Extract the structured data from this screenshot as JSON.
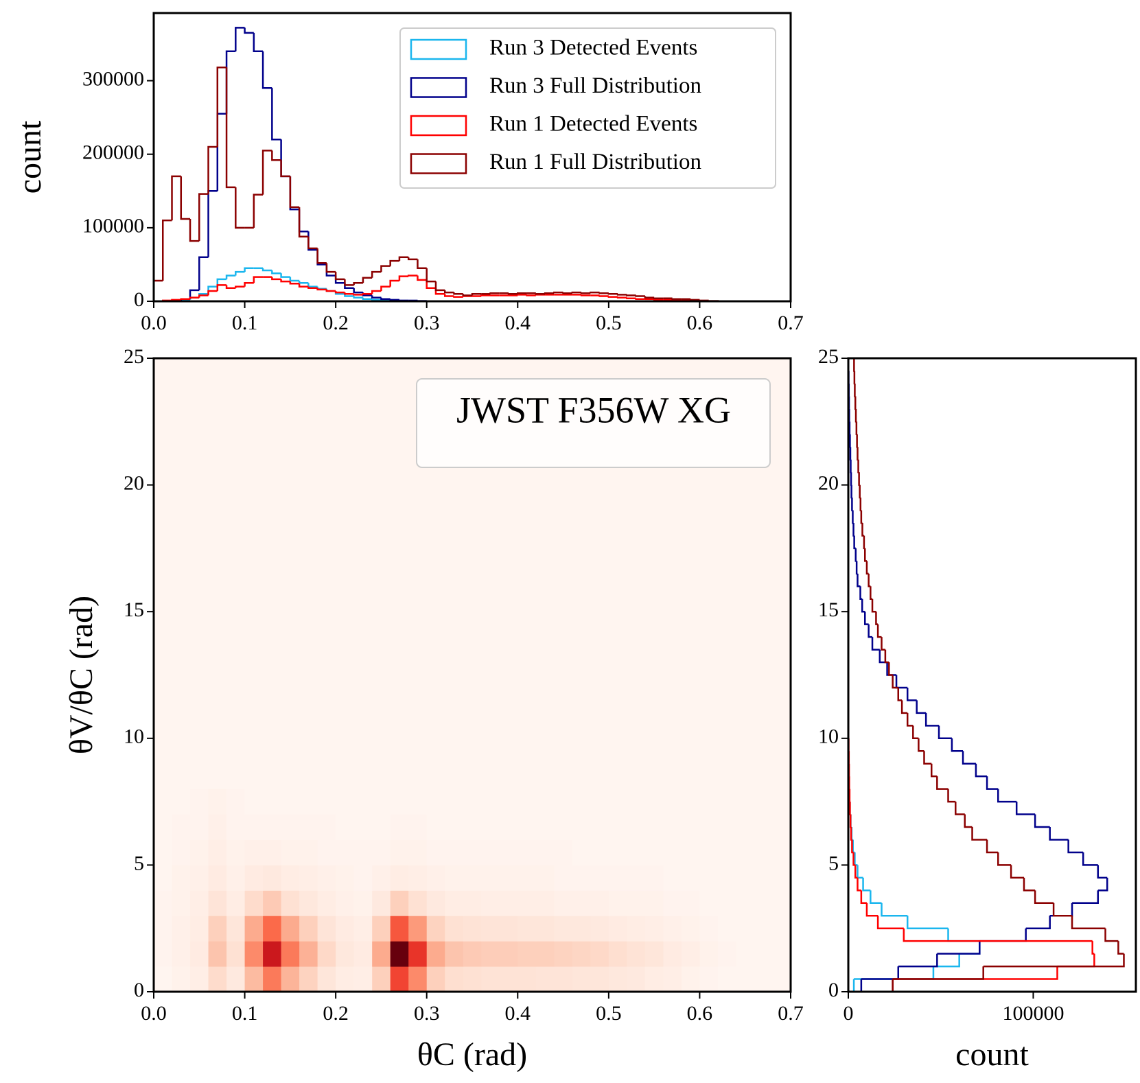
{
  "chart_data": [
    {
      "type": "histogram",
      "orientation": "vertical",
      "ylabel": "count",
      "xlim": [
        0,
        0.7
      ],
      "ylim": [
        0,
        392000
      ],
      "xticks": [
        {
          "value": 0,
          "label": "0.0"
        },
        0.1,
        0.2,
        0.3,
        0.4,
        0.5,
        0.6,
        0.7
      ],
      "yticks": [
        0,
        100000,
        200000,
        300000
      ],
      "legend": "upper right",
      "bins": [
        0,
        0.01,
        0.02,
        0.03,
        0.04,
        0.05,
        0.06,
        0.07,
        0.08,
        0.09,
        0.1,
        0.11,
        0.12,
        0.13,
        0.14,
        0.15,
        0.16,
        0.17,
        0.18,
        0.19,
        0.2,
        0.21,
        0.22,
        0.23,
        0.24,
        0.25,
        0.26,
        0.27,
        0.28,
        0.29,
        0.3,
        0.31,
        0.32,
        0.33,
        0.34,
        0.35,
        0.36,
        0.37,
        0.38,
        0.39,
        0.4,
        0.41,
        0.42,
        0.43,
        0.44,
        0.45,
        0.46,
        0.47,
        0.48,
        0.49,
        0.5,
        0.51,
        0.52,
        0.53,
        0.54,
        0.55,
        0.56,
        0.57,
        0.58,
        0.59,
        0.6,
        0.61,
        0.62
      ],
      "series": [
        {
          "name": "Run 3 Detected Events",
          "color": "#1ab6ee",
          "values": [
            0,
            0,
            0,
            2000,
            5000,
            10000,
            20000,
            30000,
            35000,
            40000,
            45000,
            45000,
            42000,
            38000,
            33000,
            28000,
            25000,
            20000,
            17000,
            14000,
            10000,
            7000,
            5000,
            3000,
            2000,
            1000,
            0,
            0,
            0,
            0,
            0,
            0,
            0,
            0,
            0,
            0,
            0,
            0,
            0,
            0,
            0,
            0,
            0,
            0,
            0,
            0,
            0,
            0,
            0,
            0,
            0,
            0,
            0,
            0,
            0,
            0,
            0,
            0,
            0,
            0,
            0,
            0
          ]
        },
        {
          "name": "Run 3 Full Distribution",
          "color": "#00008b",
          "values": [
            0,
            0,
            1000,
            3000,
            15000,
            60000,
            150000,
            255000,
            340000,
            372000,
            365000,
            340000,
            290000,
            220000,
            170000,
            125000,
            95000,
            70000,
            50000,
            35000,
            25000,
            18000,
            12000,
            8000,
            5000,
            3000,
            2000,
            1000,
            1000,
            500,
            0,
            0,
            0,
            0,
            0,
            0,
            0,
            0,
            0,
            0,
            0,
            0,
            0,
            0,
            0,
            0,
            0,
            0,
            0,
            0,
            0,
            0,
            0,
            0,
            0,
            0,
            0,
            0,
            0,
            0,
            0,
            0
          ]
        },
        {
          "name": "Run 1 Detected Events",
          "color": "#ff0000",
          "values": [
            0,
            1000,
            2000,
            3000,
            5000,
            8000,
            14000,
            22000,
            18000,
            20000,
            25000,
            33000,
            33000,
            30000,
            27000,
            24000,
            20000,
            18000,
            16000,
            14000,
            12000,
            10000,
            9000,
            10000,
            14000,
            20000,
            28000,
            34000,
            35000,
            29000,
            18000,
            10000,
            7000,
            6000,
            7000,
            7000,
            8000,
            8000,
            8000,
            8000,
            9000,
            8000,
            9000,
            9000,
            9000,
            9000,
            9000,
            8000,
            8000,
            7000,
            6000,
            5000,
            4000,
            3000,
            3000,
            2000,
            2000,
            1000,
            1000,
            500,
            0,
            0
          ]
        },
        {
          "name": "Run 1 Full Distribution",
          "color": "#8b0000",
          "values": [
            28000,
            110000,
            170000,
            112000,
            82000,
            146000,
            210000,
            318000,
            155000,
            100000,
            100000,
            145000,
            205000,
            192000,
            170000,
            128000,
            88000,
            72000,
            52000,
            40000,
            30000,
            22000,
            25000,
            32000,
            40000,
            48000,
            55000,
            60000,
            57000,
            45000,
            27000,
            15000,
            12000,
            10000,
            8000,
            10000,
            10000,
            11000,
            11000,
            10000,
            11000,
            11000,
            10000,
            11000,
            12000,
            11000,
            12000,
            11000,
            12000,
            11000,
            10000,
            9000,
            8000,
            7000,
            5000,
            4000,
            4000,
            3000,
            3000,
            2000,
            1000,
            500
          ]
        }
      ]
    },
    {
      "type": "heatmap",
      "xlabel": "θC (rad)",
      "ylabel": "θV/θC (rad)",
      "annotation": "JWST F356W XG",
      "xlim": [
        0,
        0.7
      ],
      "ylim": [
        0,
        25
      ],
      "xticks": [
        {
          "value": 0,
          "label": "0.0"
        },
        0.1,
        0.2,
        0.3,
        0.4,
        0.5,
        0.6,
        0.7
      ],
      "yticks": [
        0,
        5,
        10,
        15,
        20,
        25
      ],
      "colormap": "Reds",
      "zlim": [
        0,
        100
      ],
      "xbins": [
        0,
        0.02,
        0.04,
        0.06,
        0.08,
        0.1,
        0.12,
        0.14,
        0.16,
        0.18,
        0.2,
        0.22,
        0.24,
        0.26,
        0.28,
        0.3,
        0.32,
        0.34,
        0.36,
        0.38,
        0.4,
        0.42,
        0.44,
        0.46,
        0.48,
        0.5,
        0.52,
        0.54,
        0.56,
        0.58,
        0.6,
        0.62,
        0.64
      ],
      "ybins": [
        0,
        1,
        2,
        3,
        4,
        5,
        6,
        7,
        8
      ],
      "z": [
        [
          0,
          2,
          4,
          14,
          7,
          25,
          45,
          27,
          17,
          9,
          5,
          4,
          18,
          60,
          40,
          18,
          13,
          12,
          11,
          11,
          11,
          10,
          10,
          9,
          9,
          8,
          7,
          5,
          4,
          2,
          1,
          0
        ],
        [
          1,
          3,
          6,
          22,
          12,
          40,
          75,
          45,
          28,
          15,
          8,
          6,
          30,
          100,
          65,
          30,
          22,
          20,
          19,
          19,
          18,
          18,
          17,
          16,
          15,
          13,
          11,
          9,
          6,
          4,
          2,
          1
        ],
        [
          1,
          3,
          5,
          18,
          9,
          30,
          50,
          30,
          18,
          10,
          6,
          4,
          18,
          55,
          35,
          17,
          12,
          11,
          10,
          10,
          9,
          9,
          8,
          8,
          7,
          6,
          5,
          4,
          3,
          2,
          1,
          0
        ],
        [
          1,
          2,
          4,
          10,
          5,
          14,
          20,
          12,
          8,
          5,
          3,
          2,
          7,
          18,
          12,
          7,
          5,
          5,
          4,
          4,
          4,
          4,
          3,
          3,
          3,
          2,
          2,
          2,
          1,
          1,
          0,
          0
        ],
        [
          0,
          2,
          3,
          6,
          3,
          6,
          7,
          5,
          4,
          3,
          2,
          1,
          3,
          5,
          4,
          3,
          2,
          2,
          2,
          2,
          2,
          2,
          1,
          1,
          1,
          1,
          1,
          1,
          0,
          0,
          0,
          0
        ],
        [
          0,
          1,
          2,
          4,
          2,
          3,
          3,
          2,
          2,
          1,
          1,
          1,
          1,
          2,
          2,
          1,
          1,
          1,
          1,
          1,
          1,
          1,
          1,
          0,
          0,
          0,
          0,
          0,
          0,
          0,
          0,
          0
        ],
        [
          0,
          1,
          1,
          3,
          1,
          1,
          1,
          1,
          1,
          1,
          0,
          0,
          0,
          1,
          1,
          0,
          0,
          0,
          0,
          0,
          0,
          0,
          0,
          0,
          0,
          0,
          0,
          0,
          0,
          0,
          0,
          0
        ],
        [
          0,
          0,
          1,
          2,
          1,
          0,
          0,
          0,
          0,
          0,
          0,
          0,
          0,
          0,
          0,
          0,
          0,
          0,
          0,
          0,
          0,
          0,
          0,
          0,
          0,
          0,
          0,
          0,
          0,
          0,
          0,
          0
        ]
      ]
    },
    {
      "type": "histogram",
      "orientation": "horizontal",
      "xlabel": "count",
      "xlim": [
        0,
        155500
      ],
      "ylim": [
        0,
        25
      ],
      "xticks": [
        0,
        100000
      ],
      "yticks": [
        0,
        5,
        10,
        15,
        20,
        25
      ],
      "bins": [
        0,
        0.5,
        1,
        1.5,
        2,
        2.5,
        3,
        3.5,
        4,
        4.5,
        5,
        5.5,
        6,
        6.5,
        7,
        7.5,
        8,
        8.5,
        9,
        9.5,
        10,
        10.5,
        11,
        11.5,
        12,
        12.5,
        13,
        13.5,
        14,
        14.5,
        15,
        15.5,
        16,
        16.5,
        17,
        17.5,
        18,
        18.5,
        19,
        19.5,
        20,
        20.5,
        21,
        21.5,
        22,
        22.5,
        23,
        23.5,
        24,
        24.5,
        25
      ],
      "series": [
        {
          "color": "#1ab6ee",
          "values": [
            3000,
            46000,
            60000,
            71000,
            54000,
            32000,
            18000,
            12000,
            8000,
            5000,
            3500,
            2500,
            1800,
            1300,
            900,
            600,
            400,
            300,
            200,
            100,
            0,
            0,
            0,
            0,
            0,
            0,
            0,
            0,
            0,
            0,
            0,
            0,
            0,
            0,
            0,
            0,
            0,
            0,
            0,
            0,
            0,
            0,
            0,
            0,
            0,
            0,
            0,
            0,
            0,
            0
          ]
        },
        {
          "color": "#00008b",
          "values": [
            7000,
            27000,
            48000,
            71000,
            96000,
            109000,
            121000,
            135000,
            140000,
            135000,
            127000,
            119000,
            109000,
            101000,
            91000,
            81000,
            75000,
            69000,
            62000,
            56000,
            49000,
            42000,
            37000,
            32000,
            26000,
            21000,
            17000,
            13000,
            11000,
            9000,
            7500,
            6500,
            5000,
            4500,
            4000,
            3200,
            2800,
            2400,
            2000,
            1700,
            1500,
            1300,
            1100,
            900,
            700,
            500,
            400,
            300,
            200,
            100
          ]
        },
        {
          "color": "#ff0000",
          "values": [
            24000,
            113000,
            133000,
            132000,
            30000,
            16000,
            10000,
            7000,
            5000,
            3800,
            2800,
            2000,
            1500,
            1200,
            900,
            700,
            500,
            400,
            300,
            200,
            100,
            100,
            100,
            100,
            100,
            0,
            0,
            0,
            0,
            0,
            0,
            0,
            0,
            0,
            0,
            0,
            0,
            0,
            0,
            0,
            0,
            0,
            0,
            0,
            0,
            0,
            0,
            0,
            0,
            0
          ]
        },
        {
          "color": "#8b0000",
          "values": [
            24000,
            73000,
            149000,
            146000,
            139000,
            121000,
            111000,
            101000,
            95000,
            88000,
            81000,
            75000,
            67000,
            63000,
            58000,
            54000,
            48000,
            45000,
            41000,
            38000,
            35000,
            32000,
            29000,
            27000,
            24000,
            22000,
            20000,
            18000,
            16000,
            15000,
            13000,
            12000,
            11000,
            10000,
            9000,
            8500,
            7600,
            7000,
            6600,
            6200,
            5800,
            5400,
            5000,
            4700,
            4400,
            4100,
            3800,
            3500,
            3300,
            3100
          ]
        }
      ]
    }
  ]
}
